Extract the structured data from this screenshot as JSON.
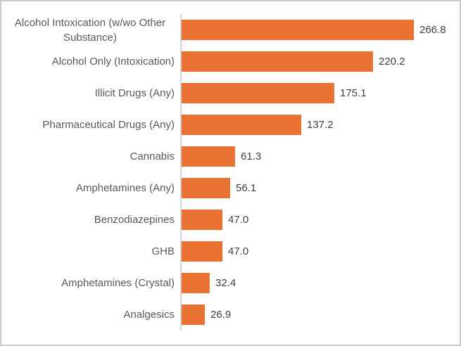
{
  "chart_data": {
    "type": "bar",
    "orientation": "horizontal",
    "title": "",
    "xlabel": "",
    "ylabel": "",
    "categories": [
      "Alcohol Intoxication (w/wo Other Substance)",
      "Alcohol Only (Intoxication)",
      "Illicit Drugs (Any)",
      "Pharmaceutical Drugs (Any)",
      "Cannabis",
      "Amphetamines (Any)",
      "Benzodiazepines",
      "GHB",
      "Amphetamines (Crystal)",
      "Analgesics"
    ],
    "values": [
      266.8,
      220.2,
      175.1,
      137.2,
      61.3,
      56.1,
      47.0,
      47.0,
      32.4,
      26.9
    ],
    "value_labels": [
      "266.8",
      "220.2",
      "175.1",
      "137.2",
      "61.3",
      "56.1",
      "47.0",
      "47.0",
      "32.4",
      "26.9"
    ],
    "data_labels_shown": true,
    "grid": false,
    "legend": false,
    "axis_ticks_shown": false,
    "xlim": [
      0,
      300
    ]
  },
  "colors": {
    "bar": "#E97132",
    "axis_line": "#D2D2D2",
    "category_label": "#595959",
    "value_label": "#404040",
    "frame_border": "#CBCBCB",
    "background": "#FFFFFF"
  }
}
